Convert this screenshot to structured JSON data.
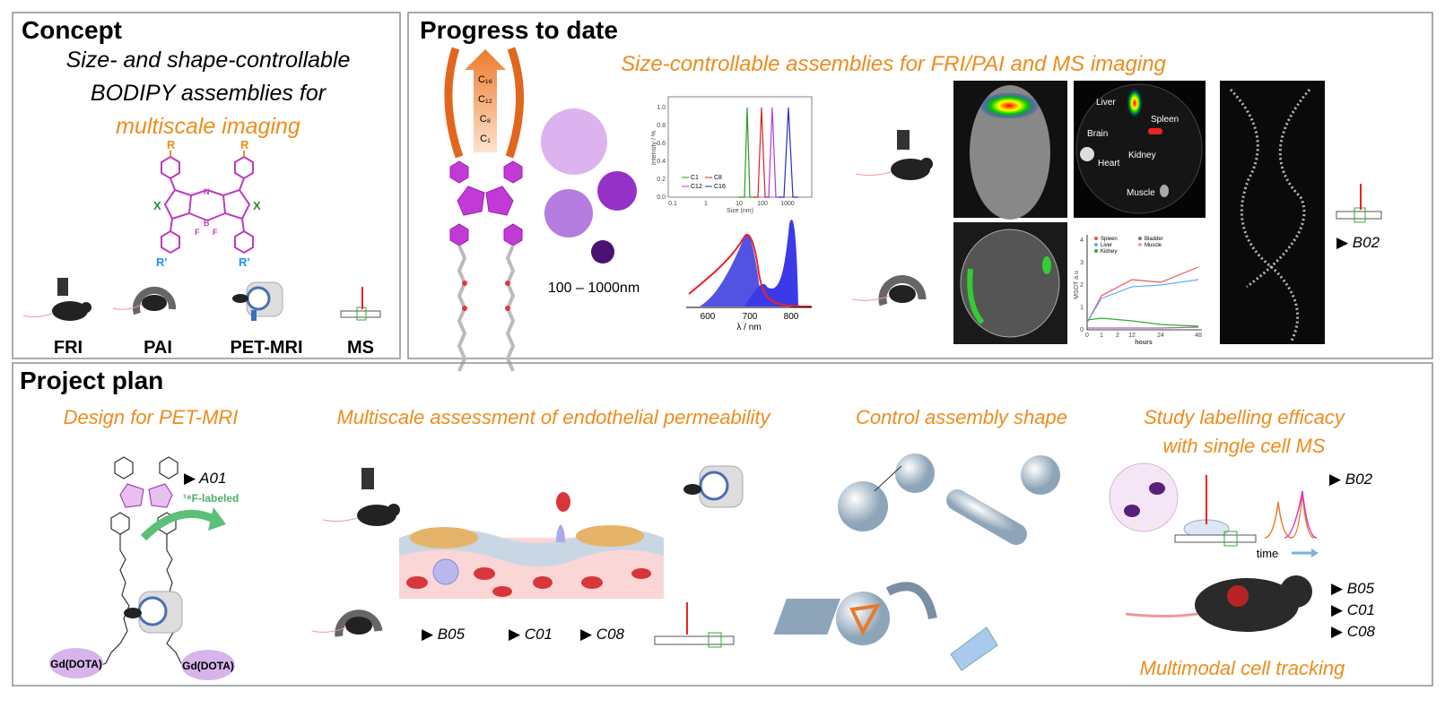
{
  "concept": {
    "title": "Concept",
    "lines": [
      "Size- and shape-controllable",
      "BODIPY assemblies for"
    ],
    "highlight": "multiscale imaging",
    "molecule": {
      "r": "R",
      "x": "X",
      "r_prime": "R'",
      "n": "N",
      "b": "B",
      "f": "F"
    },
    "modalities": [
      "FRI",
      "PAI",
      "PET-MRI",
      "MS"
    ]
  },
  "progress": {
    "title": "Progress to date",
    "subtitle": "Size-controllable assemblies for FRI/PAI and MS imaging",
    "chains": [
      "C₁₆",
      "C₁₂",
      "C₈",
      "C₁"
    ],
    "size_range": "100 – 1000nm",
    "dls": {
      "y_label": "Intensity / %",
      "x_label": "Size (nm)",
      "yticks": [
        "0.0",
        "0.2",
        "0.4",
        "0.6",
        "0.8",
        "1.0"
      ],
      "xticks": [
        "0.1",
        "1",
        "10",
        "100",
        "1000"
      ],
      "legend": [
        "C1",
        "C12",
        "C8",
        "C16"
      ]
    },
    "absorption": {
      "x_label": "λ / nm",
      "xticks": [
        "600",
        "700",
        "800"
      ]
    },
    "organs": [
      "Liver",
      "Spleen",
      "Brain",
      "Heart",
      "Kidney",
      "Muscle"
    ],
    "msot": {
      "y_label": "MSOT a.u",
      "x_label": "hours",
      "yticks": [
        "0",
        "1",
        "2",
        "3",
        "4"
      ],
      "xticks": [
        "0",
        "1",
        "2",
        "12",
        "24",
        "48"
      ],
      "legend": [
        "Spleen",
        "Liver",
        "Kidney",
        "Bladder",
        "Muscle"
      ]
    },
    "ms_ref": "▶ B02"
  },
  "plan": {
    "title": "Project plan",
    "design": {
      "heading": "Design for PET-MRI",
      "ref": "▶ A01",
      "label": "¹⁸F-labeled",
      "chelates": [
        "Gd(DOTA)",
        "Gd(DOTA)"
      ]
    },
    "permeability": {
      "heading": "Multiscale assessment of endothelial permeability",
      "refs": [
        "▶ B05",
        "▶ C01",
        "▶ C08"
      ]
    },
    "shape": {
      "heading": "Control assembly shape"
    },
    "single_cell": {
      "heading": [
        "Study labelling efficacy",
        "with single cell MS"
      ],
      "time": "time",
      "ref": "▶ B02"
    },
    "tracking": {
      "caption": "Multimodal cell tracking",
      "refs": [
        "▶ B05",
        "▶ C01",
        "▶ C08"
      ]
    }
  }
}
